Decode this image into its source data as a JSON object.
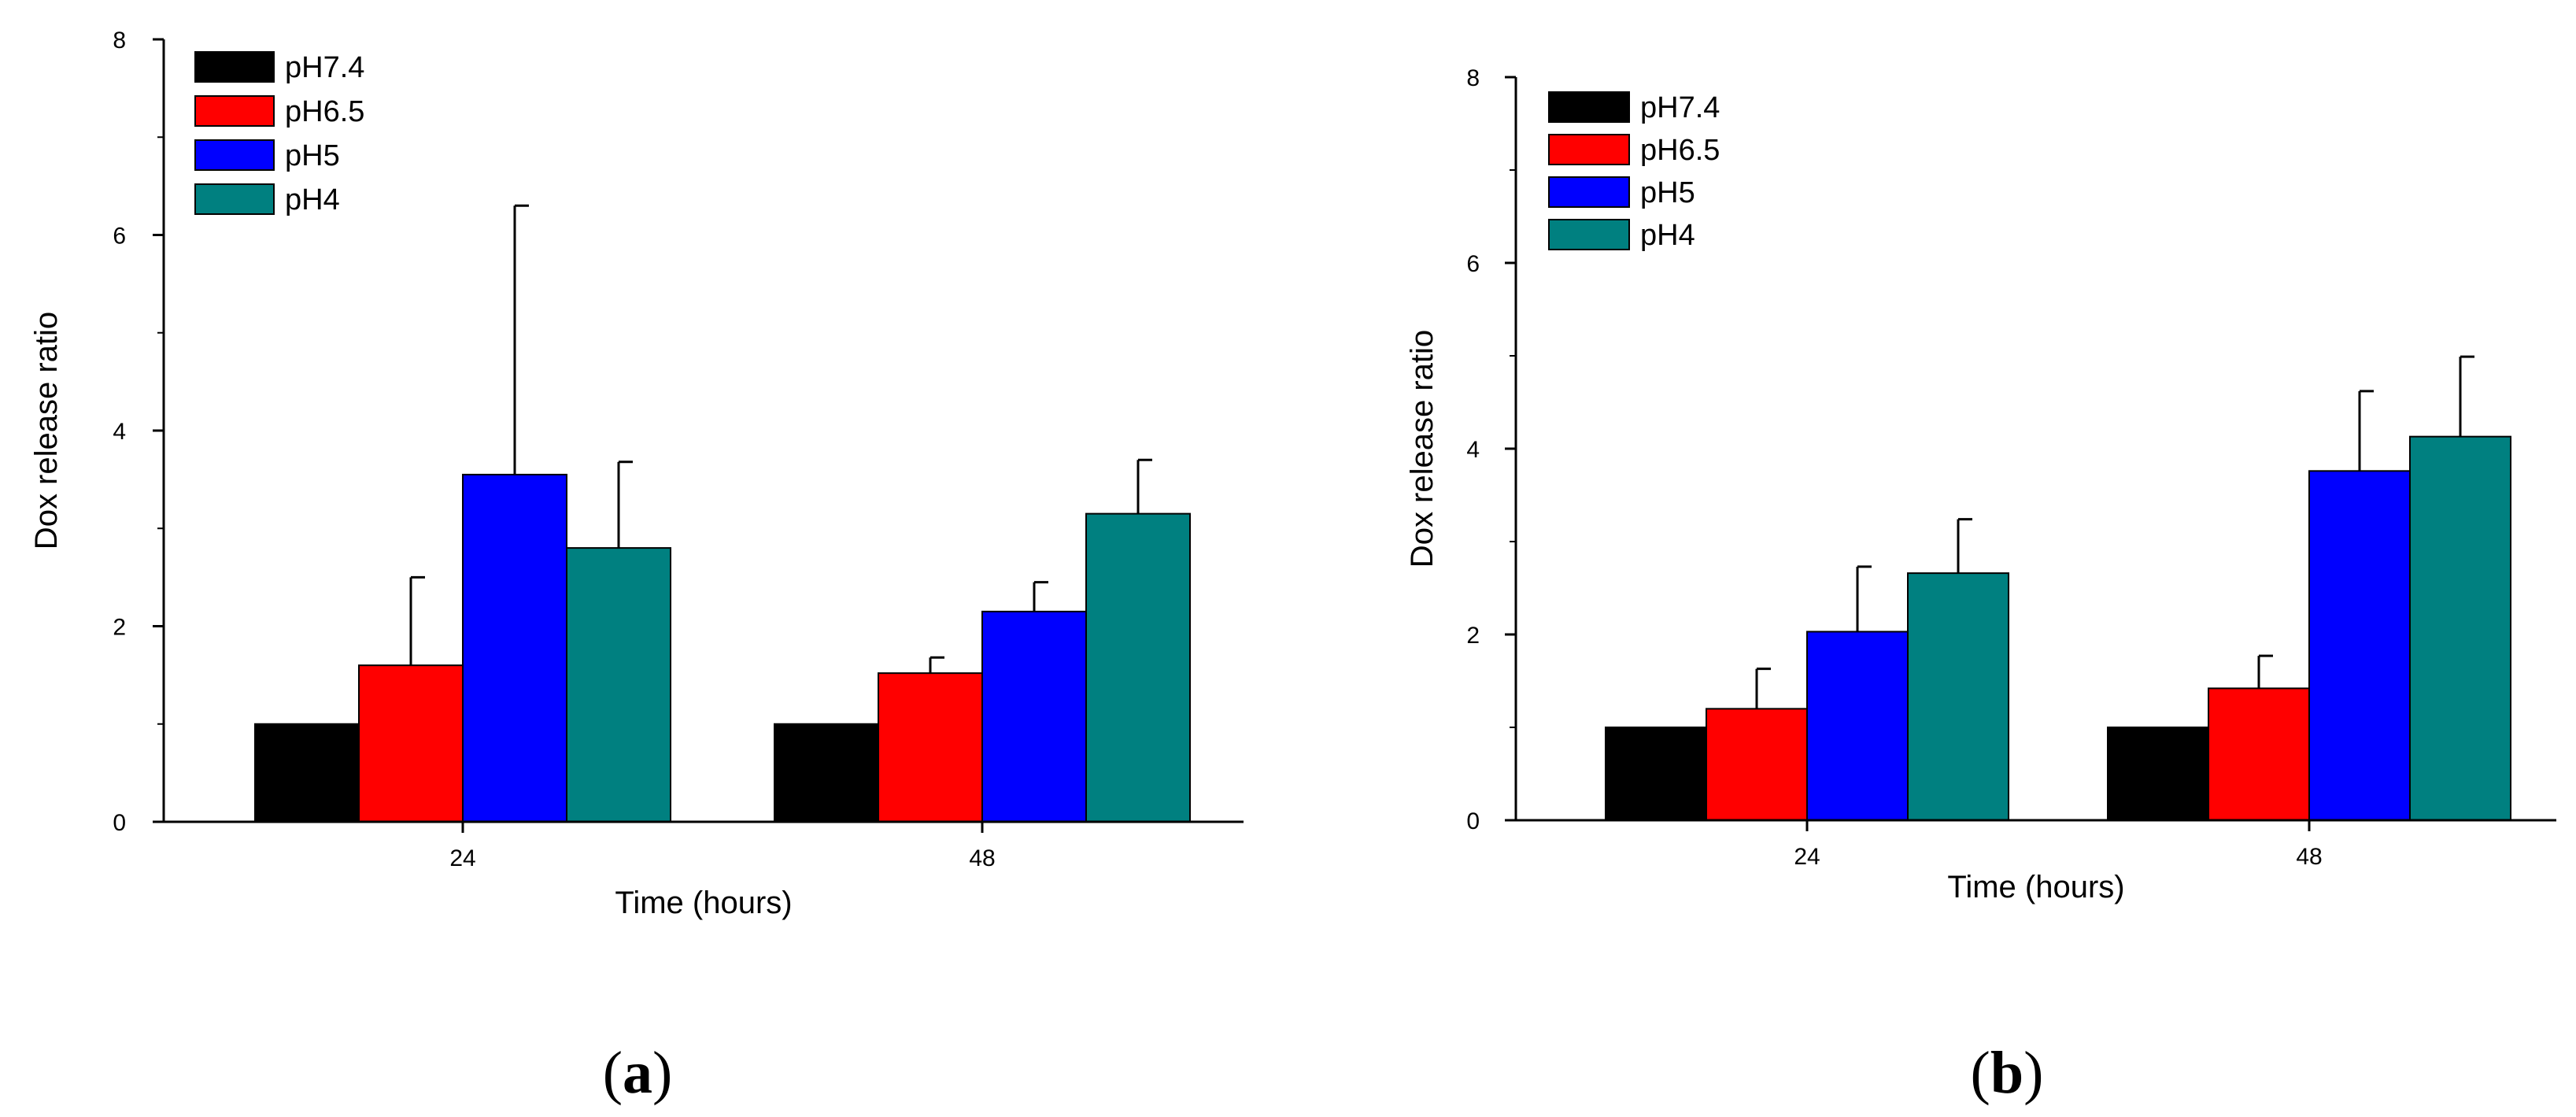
{
  "chart_data": [
    {
      "type": "bar",
      "panel_label": "a",
      "title": "",
      "xlabel": "Time (hours)",
      "ylabel": "Dox release ratio",
      "ylim": [
        0,
        8
      ],
      "yticks": [
        0,
        2,
        4,
        6,
        8
      ],
      "categories": [
        "24",
        "48"
      ],
      "legend_position": "top-left",
      "series": [
        {
          "name": "pH7.4",
          "color": "#000000",
          "values": [
            1.0,
            1.0
          ],
          "errors": [
            0,
            0
          ]
        },
        {
          "name": "pH6.5",
          "color": "#ff0000",
          "values": [
            1.6,
            1.52
          ],
          "errors": [
            0.9,
            0.16
          ]
        },
        {
          "name": "pH5",
          "color": "#0000ff",
          "values": [
            3.55,
            2.15
          ],
          "errors": [
            2.75,
            0.3
          ]
        },
        {
          "name": "pH4",
          "color": "#008080",
          "values": [
            2.8,
            3.15
          ],
          "errors": [
            0.88,
            0.55
          ]
        }
      ]
    },
    {
      "type": "bar",
      "panel_label": "b",
      "title": "",
      "xlabel": "Time (hours)",
      "ylabel": "Dox release ratio",
      "ylim": [
        0,
        8
      ],
      "yticks": [
        0,
        2,
        4,
        6,
        8
      ],
      "categories": [
        "24",
        "48"
      ],
      "legend_position": "top-left",
      "series": [
        {
          "name": "pH7.4",
          "color": "#000000",
          "values": [
            1.0,
            1.0
          ],
          "errors": [
            0,
            0
          ]
        },
        {
          "name": "pH6.5",
          "color": "#ff0000",
          "values": [
            1.2,
            1.42
          ],
          "errors": [
            0.43,
            0.35
          ]
        },
        {
          "name": "pH5",
          "color": "#0000ff",
          "values": [
            2.03,
            3.76
          ],
          "errors": [
            0.7,
            0.86
          ]
        },
        {
          "name": "pH4",
          "color": "#008080",
          "values": [
            2.66,
            4.13
          ],
          "errors": [
            0.58,
            0.86
          ]
        }
      ]
    }
  ]
}
